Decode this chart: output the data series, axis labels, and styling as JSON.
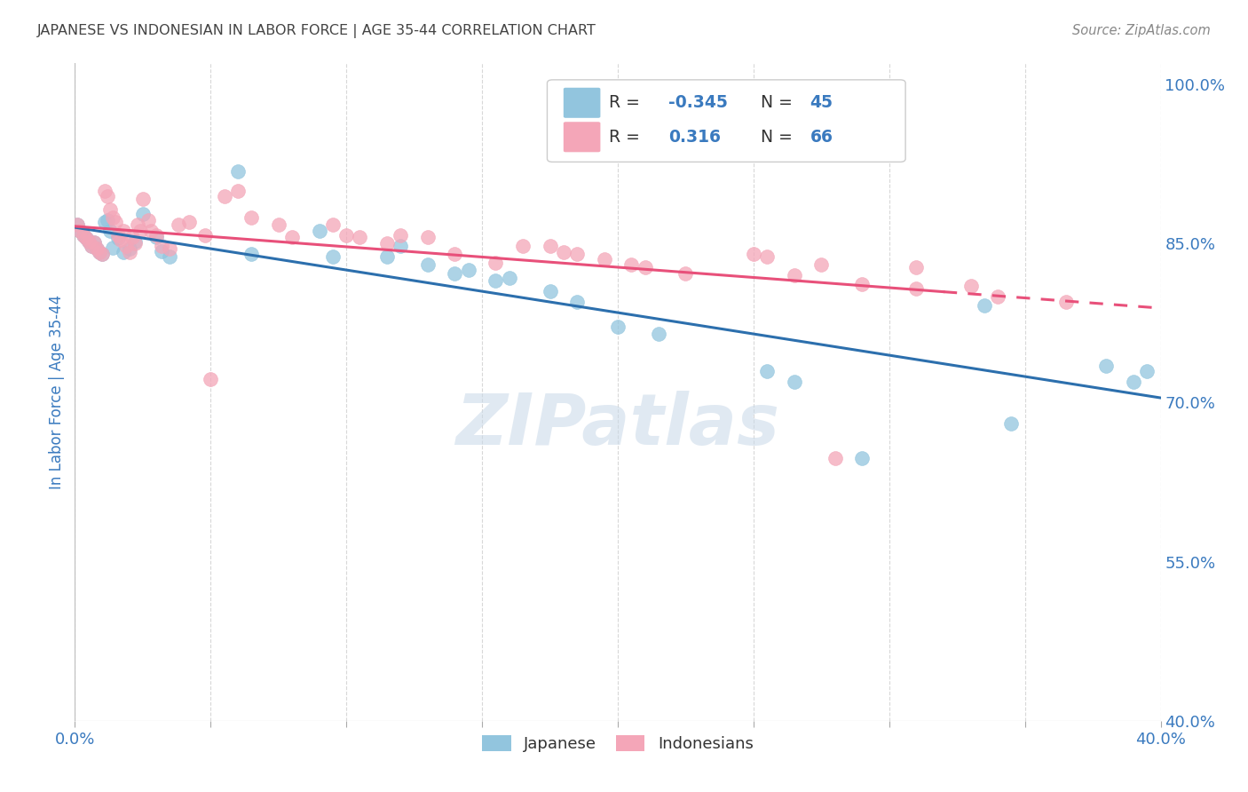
{
  "title": "JAPANESE VS INDONESIAN IN LABOR FORCE | AGE 35-44 CORRELATION CHART",
  "source": "Source: ZipAtlas.com",
  "ylabel": "In Labor Force | Age 35-44",
  "watermark": "ZIPatlas",
  "xlim": [
    0.0,
    0.4
  ],
  "ylim": [
    0.4,
    1.02
  ],
  "xtick_positions": [
    0.0,
    0.05,
    0.1,
    0.15,
    0.2,
    0.25,
    0.3,
    0.35,
    0.4
  ],
  "xtick_labels": [
    "0.0%",
    "",
    "",
    "",
    "",
    "",
    "",
    "",
    "40.0%"
  ],
  "ytick_positions": [
    0.4,
    0.55,
    0.7,
    0.85,
    1.0
  ],
  "ytick_labels": [
    "40.0%",
    "55.0%",
    "70.0%",
    "85.0%",
    "100.0%"
  ],
  "japanese_color": "#92c5de",
  "indonesian_color": "#f4a6b8",
  "japanese_line_color": "#2c6fad",
  "indonesian_line_color": "#e8507a",
  "background_color": "#ffffff",
  "grid_color": "#d8d8d8",
  "title_color": "#444444",
  "source_color": "#888888",
  "axis_label_color": "#3a7abf",
  "tick_label_color": "#3a7abf",
  "japanese_r": "-0.345",
  "japanese_n": "45",
  "indonesian_r": "0.316",
  "indonesian_n": "66",
  "jp_x": [
    0.001,
    0.002,
    0.003,
    0.004,
    0.005,
    0.006,
    0.007,
    0.008,
    0.009,
    0.01,
    0.011,
    0.012,
    0.013,
    0.014,
    0.016,
    0.018,
    0.02,
    0.022,
    0.025,
    0.03,
    0.032,
    0.035,
    0.06,
    0.065,
    0.09,
    0.095,
    0.12,
    0.14,
    0.155,
    0.175,
    0.185,
    0.2,
    0.215,
    0.255,
    0.265,
    0.29,
    0.335,
    0.345,
    0.38,
    0.39,
    0.395,
    0.115,
    0.13,
    0.145,
    0.16
  ],
  "jp_y": [
    0.868,
    0.862,
    0.858,
    0.855,
    0.852,
    0.848,
    0.851,
    0.845,
    0.842,
    0.84,
    0.87,
    0.872,
    0.862,
    0.846,
    0.855,
    0.842,
    0.845,
    0.852,
    0.878,
    0.856,
    0.843,
    0.838,
    0.918,
    0.84,
    0.862,
    0.838,
    0.848,
    0.822,
    0.815,
    0.805,
    0.795,
    0.772,
    0.765,
    0.73,
    0.72,
    0.648,
    0.792,
    0.68,
    0.735,
    0.72,
    0.73,
    0.838,
    0.83,
    0.825,
    0.818
  ],
  "id_x": [
    0.001,
    0.002,
    0.003,
    0.004,
    0.005,
    0.006,
    0.007,
    0.008,
    0.009,
    0.01,
    0.011,
    0.012,
    0.013,
    0.014,
    0.015,
    0.016,
    0.017,
    0.018,
    0.019,
    0.02,
    0.021,
    0.022,
    0.023,
    0.024,
    0.025,
    0.027,
    0.028,
    0.03,
    0.032,
    0.035,
    0.038,
    0.042,
    0.048,
    0.055,
    0.06,
    0.065,
    0.075,
    0.08,
    0.095,
    0.105,
    0.12,
    0.13,
    0.14,
    0.155,
    0.165,
    0.18,
    0.195,
    0.21,
    0.225,
    0.25,
    0.265,
    0.29,
    0.31,
    0.34,
    0.1,
    0.115,
    0.255,
    0.275,
    0.175,
    0.185,
    0.205,
    0.05,
    0.31,
    0.33,
    0.365,
    0.28
  ],
  "id_y": [
    0.868,
    0.862,
    0.858,
    0.855,
    0.852,
    0.848,
    0.851,
    0.845,
    0.842,
    0.84,
    0.9,
    0.895,
    0.882,
    0.875,
    0.87,
    0.858,
    0.854,
    0.862,
    0.848,
    0.842,
    0.856,
    0.85,
    0.868,
    0.862,
    0.892,
    0.872,
    0.862,
    0.858,
    0.848,
    0.845,
    0.868,
    0.87,
    0.858,
    0.895,
    0.9,
    0.875,
    0.868,
    0.856,
    0.868,
    0.856,
    0.858,
    0.856,
    0.84,
    0.832,
    0.848,
    0.842,
    0.835,
    0.828,
    0.822,
    0.84,
    0.82,
    0.812,
    0.828,
    0.8,
    0.858,
    0.85,
    0.838,
    0.83,
    0.848,
    0.84,
    0.83,
    0.722,
    0.808,
    0.81,
    0.795,
    0.648
  ]
}
